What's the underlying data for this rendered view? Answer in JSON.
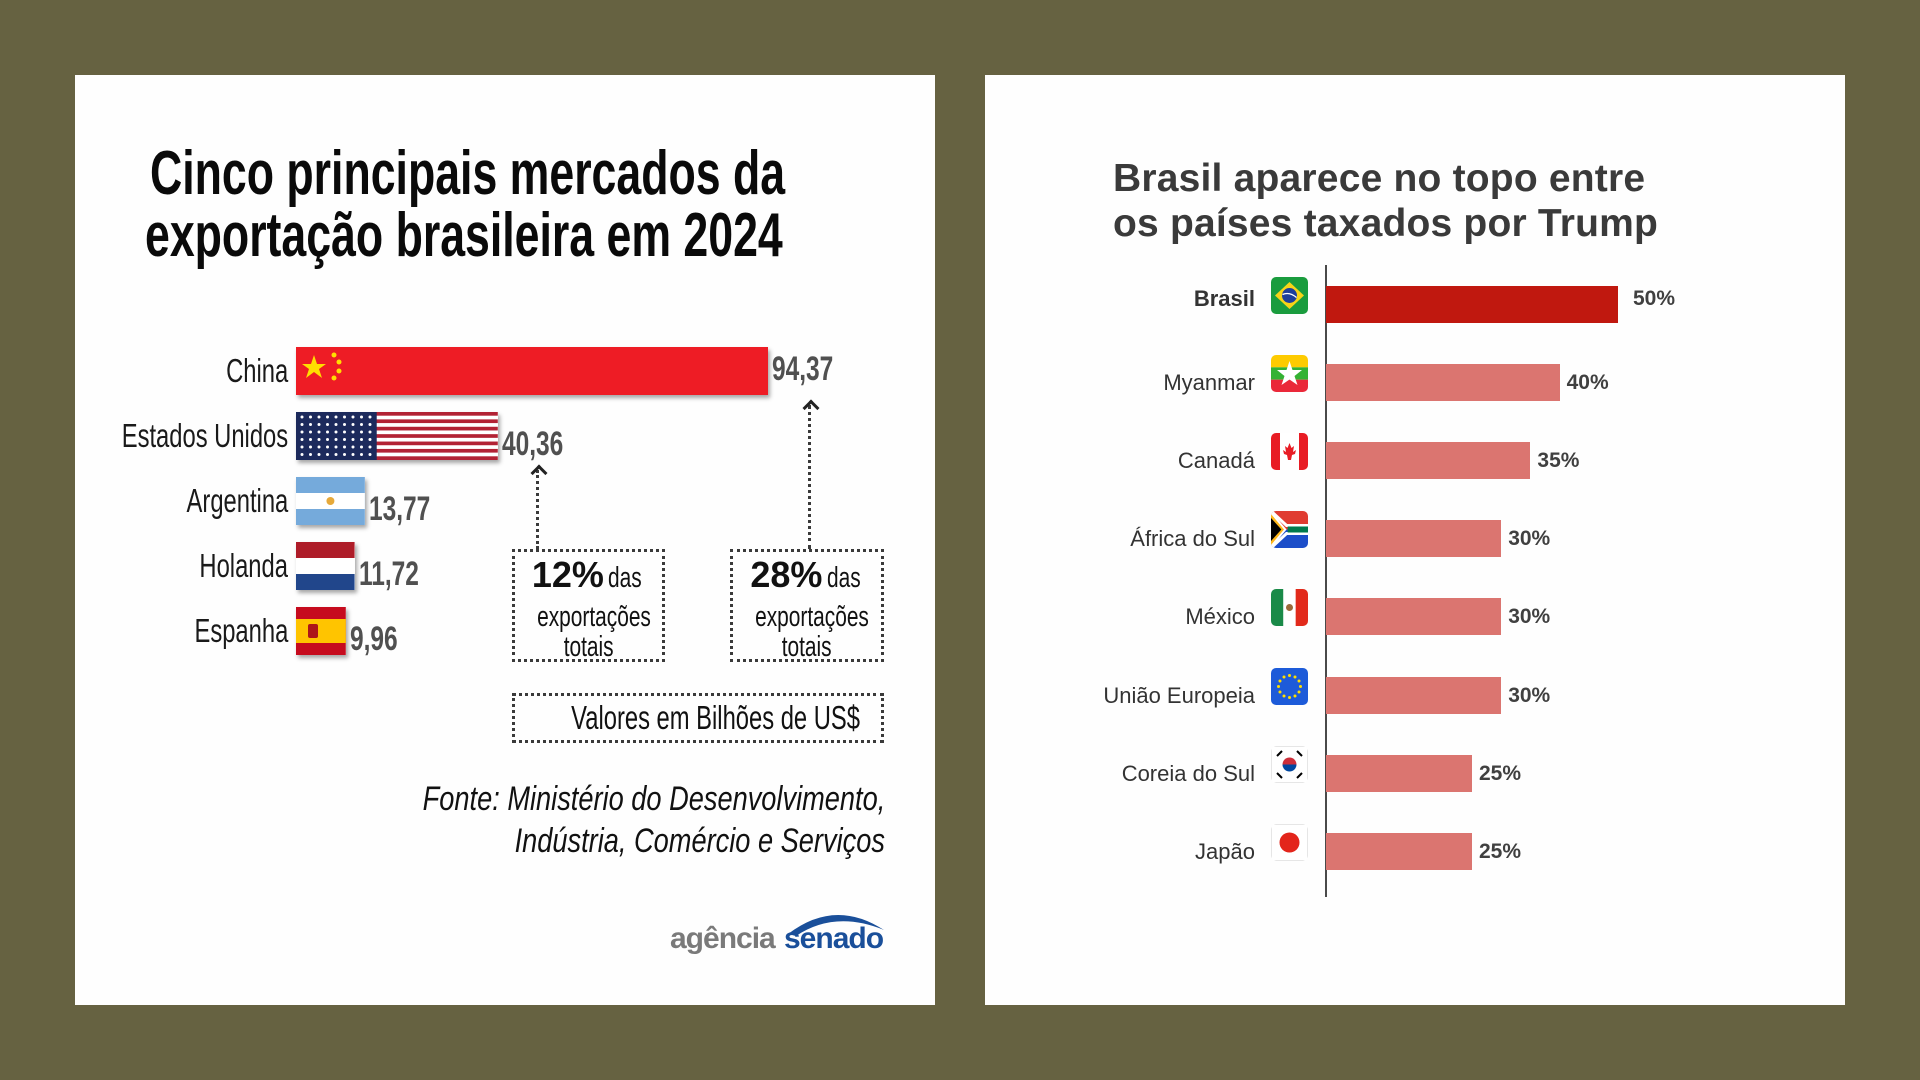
{
  "colors": {
    "background": "#666241",
    "china_red": "#ee1c25",
    "highlight_bar": "#c0180f",
    "bar": "#db7570",
    "senado_blue": "#1a4f9a",
    "agencia_gray": "#7a7a7a"
  },
  "left": {
    "title_line1": "Cinco principais mercados da",
    "title_line2": "exportação brasileira em 2024",
    "callouts": [
      {
        "big": "12%",
        "small": "das",
        "line2": "exportações",
        "line3": "totais"
      },
      {
        "big": "28%",
        "small": "das",
        "line2": "exportações",
        "line3": "totais"
      }
    ],
    "units_note": "Valores em Bilhões de US$",
    "source_line1": "Fonte: Ministério do Desenvolvimento,",
    "source_line2": "Indústria, Comércio e Serviços",
    "logo": {
      "part1": "agência",
      "part2": "senado"
    }
  },
  "right": {
    "title_line1": "Brasil aparece no topo entre",
    "title_line2": "os países taxados por Trump"
  },
  "chart_data": [
    {
      "type": "bar",
      "orientation": "horizontal",
      "title": "Cinco principais mercados da exportação brasileira em 2024",
      "categories": [
        "China",
        "Estados Unidos",
        "Argentina",
        "Holanda",
        "Espanha"
      ],
      "values": [
        94.37,
        40.36,
        13.77,
        11.72,
        9.96
      ],
      "value_labels": [
        "94,37",
        "40,36",
        "13,77",
        "11,72",
        "9,96"
      ],
      "flags": [
        "china-flag",
        "usa-flag",
        "argentina-flag",
        "netherlands-flag",
        "spain-flag"
      ],
      "units": "Bilhões de US$",
      "annotations": [
        {
          "target": "Estados Unidos",
          "text": "12% das exportações totais"
        },
        {
          "target": "China",
          "text": "28% das exportações totais"
        }
      ],
      "xlabel": "",
      "ylabel": "",
      "xlim": [
        0,
        100
      ],
      "grid": false
    },
    {
      "type": "bar",
      "orientation": "horizontal",
      "title": "Brasil aparece no topo entre os países taxados por Trump",
      "categories": [
        "Brasil",
        "Myanmar",
        "Canadá",
        "África do Sul",
        "México",
        "União Europeia",
        "Coreia do Sul",
        "Japão"
      ],
      "values": [
        50,
        40,
        35,
        30,
        30,
        30,
        25,
        25
      ],
      "value_labels": [
        "50%",
        "40%",
        "35%",
        "30%",
        "30%",
        "30%",
        "25%",
        "25%"
      ],
      "highlight": "Brasil",
      "flags": [
        "brazil-flag",
        "myanmar-flag",
        "canada-flag",
        "south-africa-flag",
        "mexico-flag",
        "eu-flag",
        "south-korea-flag",
        "japan-flag"
      ],
      "units": "%",
      "xlim": [
        0,
        50
      ],
      "grid": false
    }
  ]
}
